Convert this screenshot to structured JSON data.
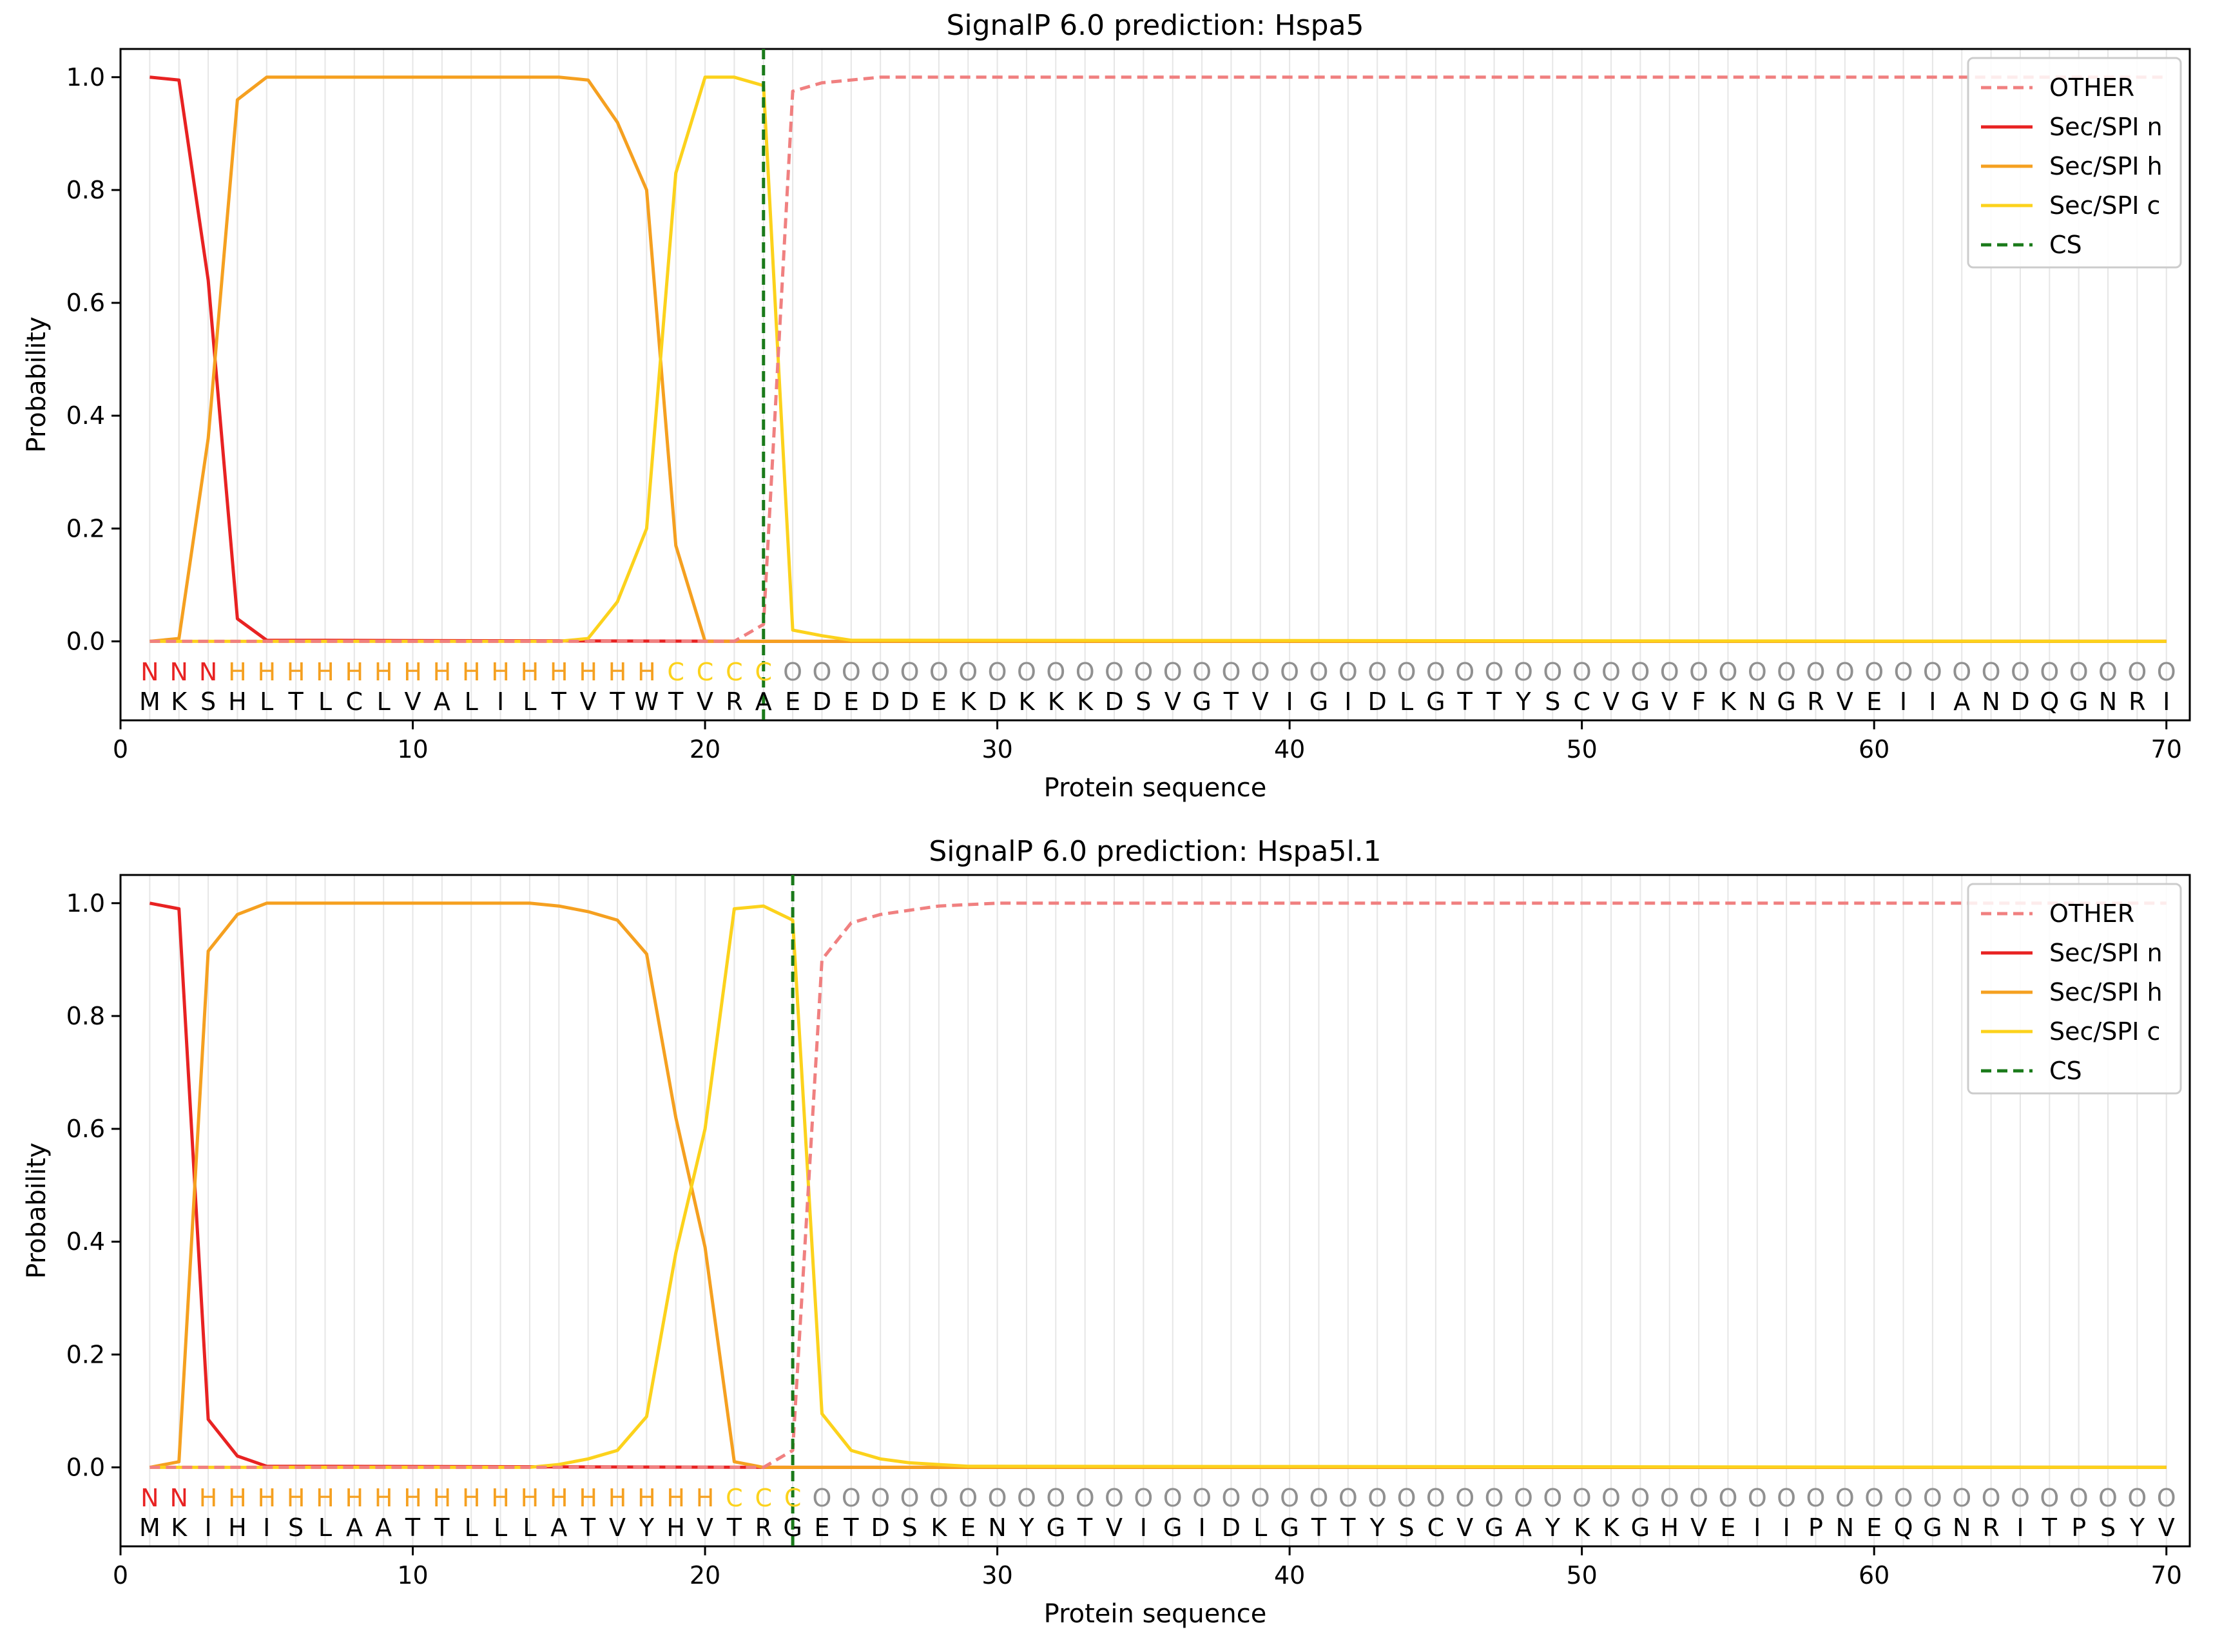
{
  "chart_data": [
    {
      "type": "line",
      "title": "SignalP 6.0 prediction: Hspa5",
      "xlabel": "Protein sequence",
      "ylabel": "Probability",
      "xlim": [
        0,
        70.8
      ],
      "ylim": [
        -0.14,
        1.05
      ],
      "x_ticks": [
        0,
        10,
        20,
        30,
        40,
        50,
        60,
        70
      ],
      "y_ticks": [
        "0.0",
        "0.2",
        "0.4",
        "0.6",
        "0.8",
        "1.0"
      ],
      "grid": "vertical lines at each residue",
      "legend_position": "top-right",
      "legend": [
        "OTHER",
        "Sec/SPI n",
        "Sec/SPI h",
        "Sec/SPI c",
        "CS"
      ],
      "sequence": "MKSHLTLCLVALILTVTWTVRAEDEDDEKDKKKDSVGTVIGIDLGTTYSCVGVFKNGRVEIIANDQGNRI",
      "labels": "NNNHHHHHHHHHHHHHHHCCCCOOOOOOOOOOOOOOOOOOOOOOOOOOOOOOOOOOOOOOOOOOOOOOOO",
      "cleavage_site": 22,
      "x": [
        1,
        70
      ],
      "series": [
        {
          "name": "OTHER",
          "color": "#f08080",
          "dash": true,
          "points": [
            [
              1,
              0
            ],
            [
              21,
              0
            ],
            [
              22,
              0.03
            ],
            [
              23,
              0.975
            ],
            [
              24,
              0.99
            ],
            [
              26,
              1.0
            ],
            [
              70,
              1.0
            ]
          ]
        },
        {
          "name": "Sec/SPI n",
          "color": "#e82222",
          "dash": false,
          "points": [
            [
              1,
              1.0
            ],
            [
              2,
              0.995
            ],
            [
              3,
              0.64
            ],
            [
              4,
              0.04
            ],
            [
              5,
              0.002
            ],
            [
              22,
              0.0
            ],
            [
              70,
              0.0
            ]
          ]
        },
        {
          "name": "Sec/SPI h",
          "color": "#f5a020",
          "dash": false,
          "points": [
            [
              1,
              0
            ],
            [
              2,
              0.005
            ],
            [
              3,
              0.36
            ],
            [
              4,
              0.96
            ],
            [
              5,
              1.0
            ],
            [
              15,
              1.0
            ],
            [
              16,
              0.995
            ],
            [
              17,
              0.92
            ],
            [
              18,
              0.8
            ],
            [
              19,
              0.17
            ],
            [
              20,
              0.0
            ],
            [
              70,
              0.0
            ]
          ]
        },
        {
          "name": "Sec/SPI c",
          "color": "#fcd21c",
          "dash": false,
          "points": [
            [
              1,
              0
            ],
            [
              15,
              0.0
            ],
            [
              16,
              0.005
            ],
            [
              17,
              0.07
            ],
            [
              18,
              0.2
            ],
            [
              19,
              0.83
            ],
            [
              20,
              1.0
            ],
            [
              21,
              1.0
            ],
            [
              22,
              0.985
            ],
            [
              23,
              0.02
            ],
            [
              24,
              0.01
            ],
            [
              25,
              0.002
            ],
            [
              70,
              0.0
            ]
          ]
        }
      ]
    },
    {
      "type": "line",
      "title": "SignalP 6.0 prediction: Hspa5l.1",
      "xlabel": "Protein sequence",
      "ylabel": "Probability",
      "xlim": [
        0,
        70.8
      ],
      "ylim": [
        -0.14,
        1.05
      ],
      "x_ticks": [
        0,
        10,
        20,
        30,
        40,
        50,
        60,
        70
      ],
      "y_ticks": [
        "0.0",
        "0.2",
        "0.4",
        "0.6",
        "0.8",
        "1.0"
      ],
      "grid": "vertical lines at each residue",
      "legend_position": "top-right",
      "legend": [
        "OTHER",
        "Sec/SPI n",
        "Sec/SPI h",
        "Sec/SPI c",
        "CS"
      ],
      "sequence": "MKIHISLAATTLLLATVYHVTRGETDSKENYGTVIGIDLGTTYSCVGAYKKGHVEIIPNEQGNRITPSYV",
      "labels": "NNHHHHHHHHHHHHHHHHHHCCCOOOOOOOOOOOOOOOOOOOOOOOOOOOOOOOOOOOOOOOOOOOOOOO",
      "cleavage_site": 23,
      "x": [
        1,
        70
      ],
      "series": [
        {
          "name": "OTHER",
          "color": "#f08080",
          "dash": true,
          "points": [
            [
              1,
              0
            ],
            [
              22,
              0.0
            ],
            [
              23,
              0.03
            ],
            [
              24,
              0.9
            ],
            [
              25,
              0.965
            ],
            [
              26,
              0.98
            ],
            [
              28,
              0.995
            ],
            [
              30,
              1.0
            ],
            [
              70,
              1.0
            ]
          ]
        },
        {
          "name": "Sec/SPI n",
          "color": "#e82222",
          "dash": false,
          "points": [
            [
              1,
              1.0
            ],
            [
              2,
              0.99
            ],
            [
              3,
              0.085
            ],
            [
              4,
              0.02
            ],
            [
              5,
              0.002
            ],
            [
              23,
              0.0
            ],
            [
              70,
              0.0
            ]
          ]
        },
        {
          "name": "Sec/SPI h",
          "color": "#f5a020",
          "dash": false,
          "points": [
            [
              1,
              0
            ],
            [
              2,
              0.01
            ],
            [
              3,
              0.915
            ],
            [
              4,
              0.98
            ],
            [
              5,
              1.0
            ],
            [
              14,
              1.0
            ],
            [
              15,
              0.995
            ],
            [
              16,
              0.985
            ],
            [
              17,
              0.97
            ],
            [
              18,
              0.91
            ],
            [
              19,
              0.62
            ],
            [
              20,
              0.39
            ],
            [
              21,
              0.01
            ],
            [
              22,
              0.0
            ],
            [
              70,
              0.0
            ]
          ]
        },
        {
          "name": "Sec/SPI c",
          "color": "#fcd21c",
          "dash": false,
          "points": [
            [
              1,
              0
            ],
            [
              14,
              0.0
            ],
            [
              15,
              0.005
            ],
            [
              16,
              0.015
            ],
            [
              17,
              0.03
            ],
            [
              18,
              0.09
            ],
            [
              19,
              0.38
            ],
            [
              20,
              0.6
            ],
            [
              21,
              0.99
            ],
            [
              22,
              0.995
            ],
            [
              23,
              0.97
            ],
            [
              24,
              0.095
            ],
            [
              25,
              0.03
            ],
            [
              26,
              0.015
            ],
            [
              27,
              0.008
            ],
            [
              29,
              0.002
            ],
            [
              70,
              0.0
            ]
          ]
        }
      ]
    }
  ]
}
